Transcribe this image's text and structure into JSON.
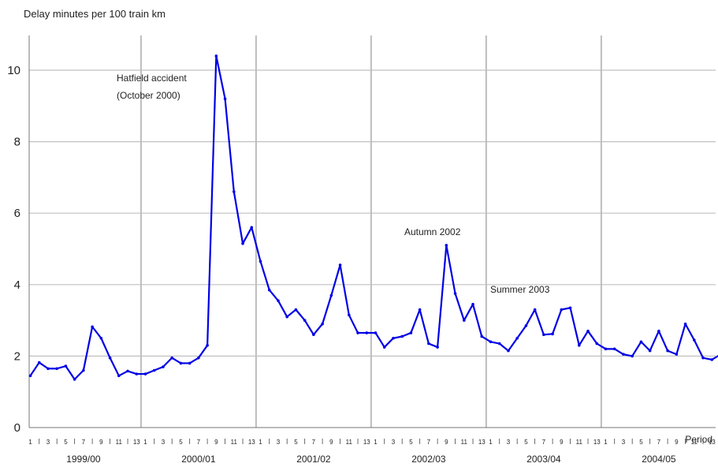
{
  "chart_data": {
    "type": "line",
    "title": "Delay minutes per 100 train km",
    "xlabel": "Period",
    "ylabel": "",
    "ylim": [
      0,
      11
    ],
    "yticks": [
      0,
      2,
      4,
      6,
      8,
      10
    ],
    "grid": "vertical lines at year boundaries, horizontal lines at y ticks",
    "line_color": "#0000e6",
    "years": [
      "1999/00",
      "2000/01",
      "2001/02",
      "2002/03",
      "2003/04",
      "2004/05"
    ],
    "period_tick_labels": [
      "1",
      "",
      "3",
      "",
      "5",
      "",
      "7",
      "",
      "9",
      "",
      "11",
      "",
      "13"
    ],
    "annotations": [
      {
        "lines": [
          "Hatfield accident",
          "(October 2000)"
        ],
        "year": "2000/01",
        "period": 8
      },
      {
        "lines": [
          "Autumn 2002"
        ],
        "year": "2002/03",
        "period": 8
      },
      {
        "lines": [
          "Summer 2003"
        ],
        "year": "2003/04",
        "period": 5
      }
    ],
    "series": [
      {
        "values": [
          1.45,
          1.82,
          1.65,
          1.65,
          1.72,
          1.35,
          1.6,
          2.82,
          2.5,
          1.95,
          1.45,
          1.58,
          1.5,
          1.5,
          1.6,
          1.7,
          1.95,
          1.8,
          1.8,
          1.95,
          2.3,
          10.4,
          9.2,
          6.6,
          5.15,
          5.6,
          4.65,
          3.85,
          3.55,
          3.1,
          3.3,
          3.0,
          2.6,
          2.9,
          3.7,
          4.55,
          3.15,
          2.65,
          2.65,
          2.65,
          2.25,
          2.5,
          2.55,
          2.65,
          3.3,
          2.35,
          2.25,
          5.1,
          3.75,
          3.0,
          3.45,
          2.55,
          2.4,
          2.35,
          2.15,
          2.5,
          2.85,
          3.3,
          2.6,
          2.62,
          3.3,
          3.35,
          2.3,
          2.7,
          2.35,
          2.2,
          2.2,
          2.05,
          2.0,
          2.4,
          2.15,
          2.7,
          2.15,
          2.05,
          2.9,
          2.45,
          1.95,
          1.9,
          2.05,
          1.75
        ]
      }
    ]
  }
}
